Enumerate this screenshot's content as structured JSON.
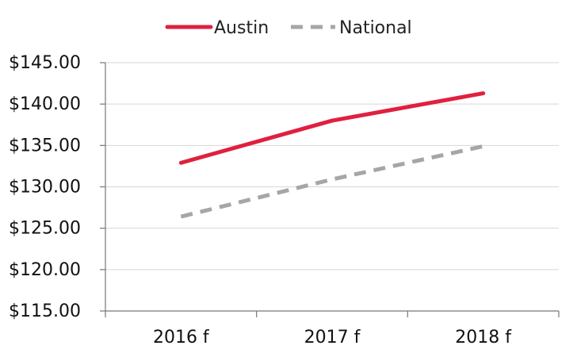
{
  "chart_data": {
    "type": "line",
    "title": "",
    "xlabel": "",
    "ylabel": "",
    "categories": [
      "2016 f",
      "2017 f",
      "2018 f"
    ],
    "series": [
      {
        "name": "Austin",
        "values": [
          132.9,
          138.0,
          141.3
        ],
        "color": "#e0203f",
        "line_style": "solid"
      },
      {
        "name": "National",
        "values": [
          126.4,
          130.9,
          134.9
        ],
        "color": "#a6a6a6",
        "line_style": "dashed"
      }
    ],
    "ylim": [
      115,
      145
    ],
    "yticks": [
      145,
      140,
      135,
      130,
      125,
      120,
      115
    ],
    "ytick_labels": [
      "$145.00",
      "$140.00",
      "$135.00",
      "$130.00",
      "$125.00",
      "$120.00",
      "$115.00"
    ],
    "grid": true,
    "legend_position": "top-center"
  }
}
